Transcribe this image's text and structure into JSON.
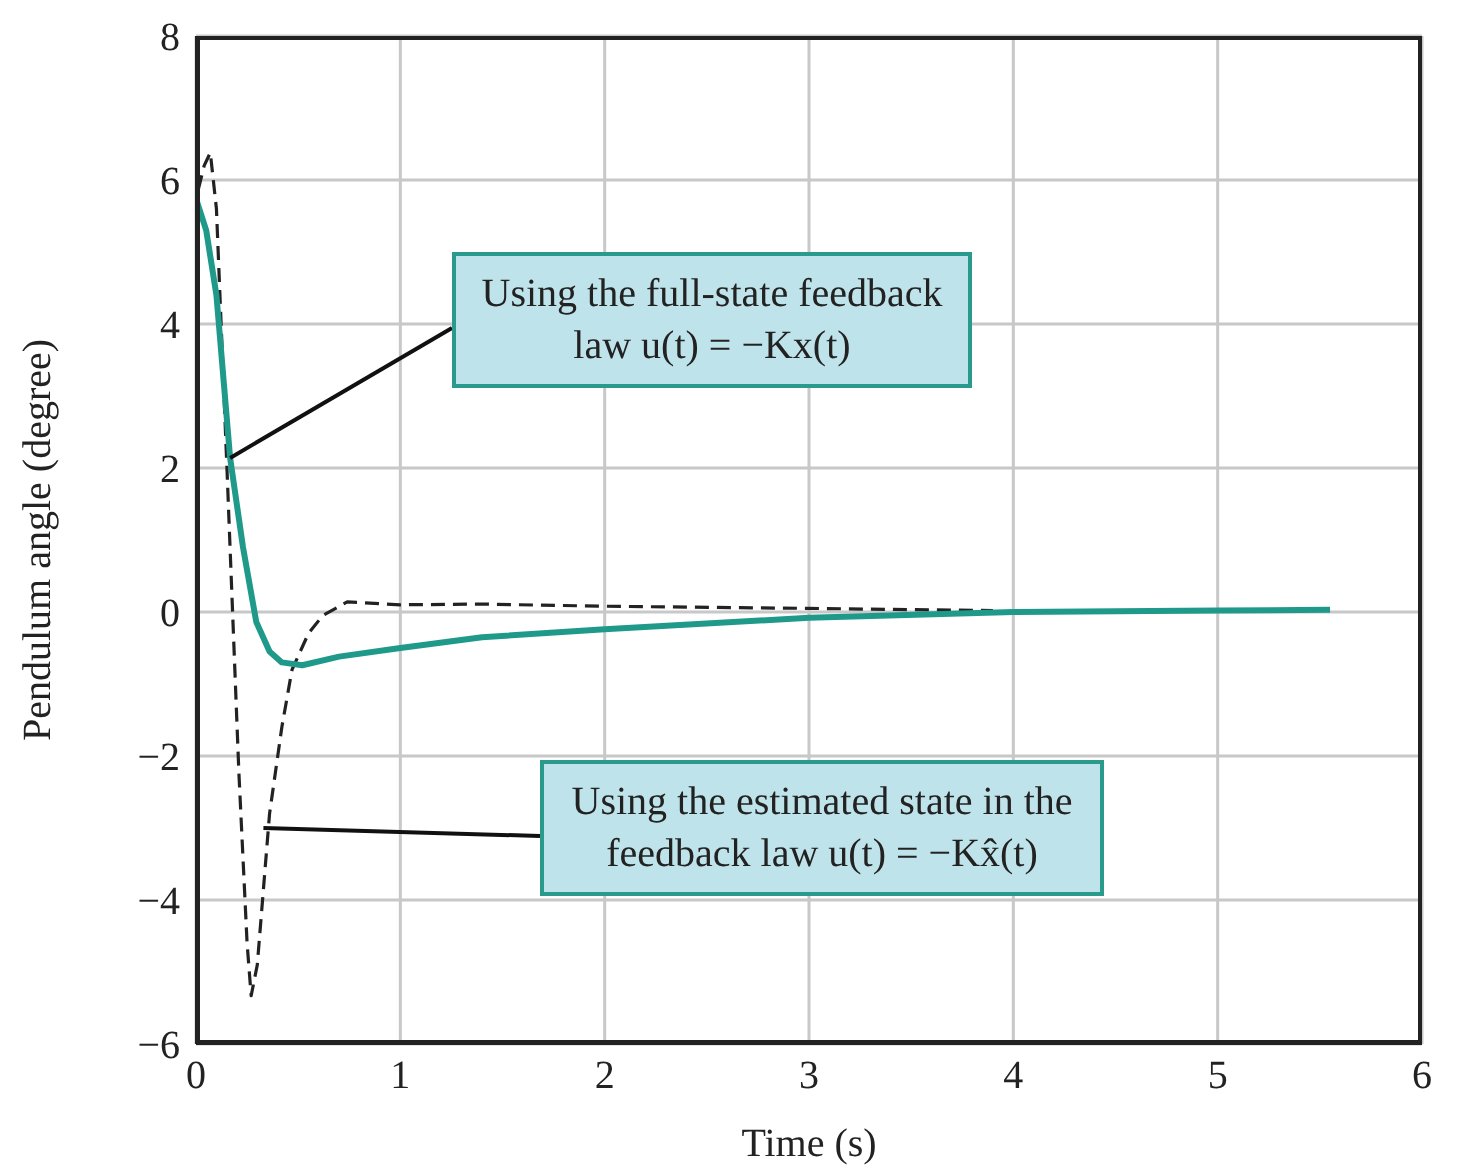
{
  "chart_data": {
    "type": "line",
    "xlabel": "Time (s)",
    "ylabel": "Pendulum angle (degree)",
    "xlim": [
      0,
      6
    ],
    "xticks": [
      0,
      1,
      2,
      3,
      4,
      5,
      6
    ],
    "ylim": [
      -6,
      8
    ],
    "yticks": [
      -6,
      -4,
      -2,
      0,
      2,
      4,
      6,
      8
    ],
    "grid": true,
    "legend": false,
    "marker": "none",
    "series": [
      {
        "color": "#1f9a8a",
        "line_style": "solid",
        "x": [
          0,
          0.05,
          0.1,
          0.167,
          0.23,
          0.295,
          0.36,
          0.42,
          0.52,
          0.7,
          1,
          1.4,
          2,
          3,
          4,
          5,
          5.55
        ],
        "values": [
          5.74,
          5.3,
          4.4,
          2.14,
          0.9,
          -0.14,
          -0.55,
          -0.7,
          -0.74,
          -0.62,
          -0.5,
          -0.35,
          -0.24,
          -0.08,
          0,
          0.02,
          0.03
        ]
      },
      {
        "color": "#222222",
        "line_style": "dashed",
        "x": [
          0,
          0.04,
          0.07,
          0.1,
          0.15,
          0.21,
          0.25,
          0.27,
          0.3,
          0.36,
          0.42,
          0.47,
          0.55,
          0.62,
          0.74,
          1,
          1.4,
          2,
          3,
          3.9
        ],
        "values": [
          5.74,
          6.2,
          6.38,
          5.6,
          2.1,
          -2.24,
          -4.6,
          -5.33,
          -4.9,
          -2.8,
          -1.6,
          -0.8,
          -0.3,
          -0.05,
          0.14,
          0.1,
          0.11,
          0.08,
          0.05,
          0.02
        ]
      }
    ],
    "annotations": [
      {
        "text": "Using the full-state feedback law u(t) = −Kx(t)",
        "x": 0.167,
        "y": 2.14
      },
      {
        "text": "Using the estimated state in the feedback law u(t) = −Kx̂(t)",
        "x": 0.33,
        "y": -3.0
      }
    ]
  }
}
